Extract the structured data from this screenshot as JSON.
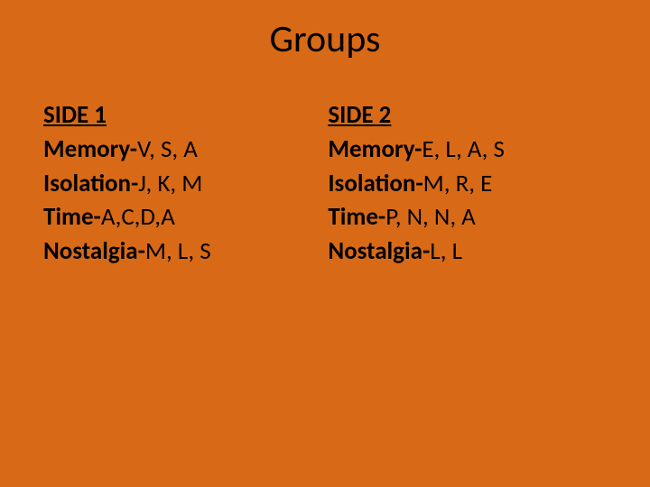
{
  "background_color": "#d86a17",
  "text_color": "#000000",
  "title": {
    "text": "Groups",
    "fontsize": 42,
    "font_weight": "normal"
  },
  "body_fontsize": 27,
  "columns": [
    {
      "heading": "SIDE 1",
      "rows": [
        {
          "label": "Memory-",
          "values": "V, S, A"
        },
        {
          "label": "Isolation-",
          "values": "J, K, M"
        },
        {
          "label": "Time-",
          "values": "A,C,D,A"
        },
        {
          "label": "Nostalgia-",
          "values": "M, L, S"
        }
      ]
    },
    {
      "heading": "SIDE 2",
      "rows": [
        {
          "label": "Memory-",
          "values": "E, L, A, S"
        },
        {
          "label": "Isolation-",
          "values": "M, R, E"
        },
        {
          "label": "Time-",
          "values": "P, N, N, A"
        },
        {
          "label": "Nostalgia-",
          "values": "L, L"
        }
      ]
    }
  ]
}
